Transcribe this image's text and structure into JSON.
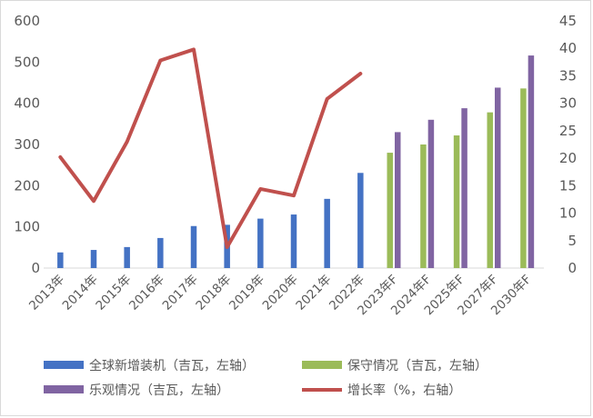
{
  "chart_data": {
    "type": "bar",
    "categories": [
      "2013年",
      "2014年",
      "2015年",
      "2016年",
      "2017年",
      "2018年",
      "2019年",
      "2020年",
      "2021年",
      "2022年",
      "2023年F",
      "2024年F",
      "2025年F",
      "2027年F",
      "2030年F"
    ],
    "series": [
      {
        "name": "全球新增装机（吉瓦，左轴）",
        "kind": "bar",
        "axis": "left",
        "color": "#4472c4",
        "values": [
          38,
          44,
          51,
          73,
          102,
          105,
          120,
          130,
          168,
          231,
          null,
          null,
          null,
          null,
          null
        ]
      },
      {
        "name": "保守情况（吉瓦，左轴）",
        "kind": "bar",
        "axis": "left",
        "color": "#9bbb59",
        "values": [
          null,
          null,
          null,
          null,
          null,
          null,
          null,
          null,
          null,
          null,
          280,
          300,
          322,
          378,
          436
        ]
      },
      {
        "name": "乐观情况（吉瓦，左轴）",
        "kind": "bar",
        "axis": "left",
        "color": "#8064a2",
        "values": [
          null,
          null,
          null,
          null,
          null,
          null,
          null,
          null,
          null,
          null,
          330,
          360,
          388,
          438,
          516
        ]
      },
      {
        "name": "增长率（%，右轴）",
        "kind": "line",
        "axis": "right",
        "color": "#c0504d",
        "values": [
          20.2,
          12.2,
          23.0,
          37.8,
          39.8,
          3.8,
          14.4,
          13.2,
          30.8,
          35.4,
          null,
          null,
          null,
          null,
          null
        ]
      }
    ],
    "y_left": {
      "min": 0,
      "max": 600,
      "ticks": [
        "0",
        "100",
        "200",
        "300",
        "400",
        "500",
        "600"
      ]
    },
    "y_right": {
      "min": 0,
      "max": 45,
      "ticks": [
        "0",
        "5",
        "10",
        "15",
        "20",
        "25",
        "30",
        "35",
        "40",
        "45"
      ]
    },
    "grid": false,
    "legend_position": "bottom"
  }
}
